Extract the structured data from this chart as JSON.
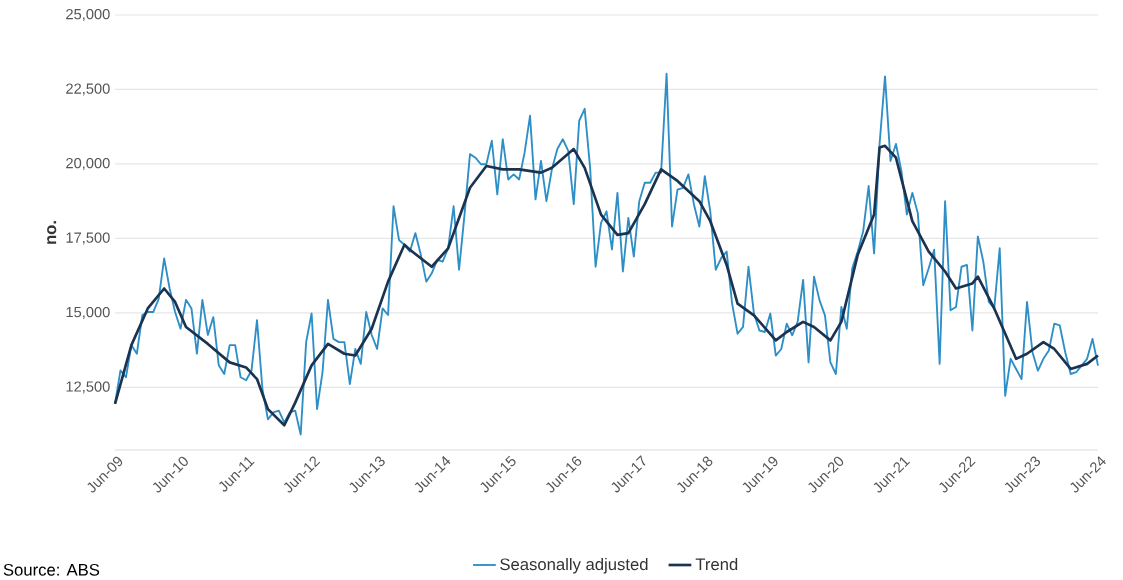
{
  "chart_data": {
    "type": "line",
    "ylabel": "no.",
    "x": [
      "2009-06",
      "2009-07",
      "2009-08",
      "2009-09",
      "2009-10",
      "2009-11",
      "2009-12",
      "2010-01",
      "2010-02",
      "2010-03",
      "2010-04",
      "2010-05",
      "2010-06",
      "2010-07",
      "2010-08",
      "2010-09",
      "2010-10",
      "2010-11",
      "2010-12",
      "2011-01",
      "2011-02",
      "2011-03",
      "2011-04",
      "2011-05",
      "2011-06",
      "2011-07",
      "2011-08",
      "2011-09",
      "2011-10",
      "2011-11",
      "2011-12",
      "2012-01",
      "2012-02",
      "2012-03",
      "2012-04",
      "2012-05",
      "2012-06",
      "2012-07",
      "2012-08",
      "2012-09",
      "2012-10",
      "2012-11",
      "2012-12",
      "2013-01",
      "2013-02",
      "2013-03",
      "2013-04",
      "2013-05",
      "2013-06",
      "2013-07",
      "2013-08",
      "2013-09",
      "2013-10",
      "2013-11",
      "2013-12",
      "2014-01",
      "2014-02",
      "2014-03",
      "2014-04",
      "2014-05",
      "2014-06",
      "2014-07",
      "2014-08",
      "2014-09",
      "2014-10",
      "2014-11",
      "2014-12",
      "2015-01",
      "2015-02",
      "2015-03",
      "2015-04",
      "2015-05",
      "2015-06",
      "2015-07",
      "2015-08",
      "2015-09",
      "2015-10",
      "2015-11",
      "2015-12",
      "2016-01",
      "2016-02",
      "2016-03",
      "2016-04",
      "2016-05",
      "2016-06",
      "2016-07",
      "2016-08",
      "2016-09",
      "2016-10",
      "2016-11",
      "2016-12",
      "2017-01",
      "2017-02",
      "2017-03",
      "2017-04",
      "2017-05",
      "2017-06",
      "2017-07",
      "2017-08",
      "2017-09",
      "2017-10",
      "2017-11",
      "2017-12",
      "2018-01",
      "2018-02",
      "2018-03",
      "2018-04",
      "2018-05",
      "2018-06",
      "2018-07",
      "2018-08",
      "2018-09",
      "2018-10",
      "2018-11",
      "2018-12",
      "2019-01",
      "2019-02",
      "2019-03",
      "2019-04",
      "2019-05",
      "2019-06",
      "2019-07",
      "2019-08",
      "2019-09",
      "2019-10",
      "2019-11",
      "2019-12",
      "2020-01",
      "2020-02",
      "2020-03",
      "2020-04",
      "2020-05",
      "2020-06",
      "2020-07",
      "2020-08",
      "2020-09",
      "2020-10",
      "2020-11",
      "2020-12",
      "2021-01",
      "2021-02",
      "2021-03",
      "2021-04",
      "2021-05",
      "2021-06",
      "2021-07",
      "2021-08",
      "2021-09",
      "2021-10",
      "2021-11",
      "2021-12",
      "2022-01",
      "2022-02",
      "2022-03",
      "2022-04",
      "2022-05",
      "2022-06",
      "2022-07",
      "2022-08",
      "2022-09",
      "2022-10",
      "2022-11",
      "2022-12",
      "2023-01",
      "2023-02",
      "2023-03",
      "2023-04",
      "2023-05",
      "2023-06",
      "2023-07",
      "2023-08",
      "2023-09",
      "2023-10",
      "2023-11",
      "2023-12",
      "2024-01",
      "2024-02",
      "2024-03",
      "2024-04",
      "2024-05",
      "2024-06"
    ],
    "series": [
      {
        "name": "Seasonally adjusted",
        "color": "#2e8fc7",
        "values": [
          11950,
          13070,
          12840,
          13920,
          13630,
          14930,
          15030,
          15030,
          15470,
          16830,
          15820,
          15030,
          14470,
          15440,
          15150,
          13630,
          15440,
          14260,
          14860,
          13240,
          12950,
          13920,
          13920,
          12840,
          12740,
          13070,
          14760,
          12440,
          11430,
          11660,
          11720,
          11320,
          11660,
          11720,
          10920,
          14020,
          14980,
          11770,
          13010,
          15440,
          14130,
          14020,
          14020,
          12610,
          13790,
          13290,
          15030,
          14260,
          13790,
          15150,
          14930,
          18580,
          17450,
          17290,
          17060,
          17680,
          16950,
          16050,
          16330,
          16780,
          16720,
          17170,
          18580,
          16450,
          18300,
          20330,
          20210,
          19990,
          19990,
          20780,
          18980,
          20830,
          19480,
          19650,
          19480,
          20380,
          21620,
          18810,
          20100,
          18750,
          19820,
          20500,
          20830,
          20440,
          18650,
          21450,
          21850,
          19870,
          16550,
          18020,
          18410,
          17130,
          19030,
          16390,
          18190,
          16890,
          18750,
          19370,
          19370,
          19710,
          19710,
          23030,
          17900,
          19140,
          19200,
          19650,
          18650,
          17900,
          19590,
          18410,
          16450,
          16840,
          17060,
          15310,
          14300,
          14530,
          16550,
          14980,
          14410,
          14360,
          14980,
          13570,
          13790,
          14640,
          14250,
          14700,
          16110,
          13340,
          16220,
          15430,
          14920,
          13340,
          12950,
          15200,
          14470,
          16500,
          17060,
          17740,
          19260,
          17000,
          20670,
          22940,
          20100,
          20670,
          19770,
          18300,
          19030,
          18350,
          15930,
          16500,
          17120,
          13290,
          18750,
          15090,
          15200,
          16550,
          16610,
          14410,
          17570,
          16720,
          15370,
          15150,
          17170,
          12220,
          13460,
          13120,
          12780,
          15370,
          13680,
          13060,
          13460,
          13740,
          14640,
          14580,
          13680,
          12950,
          13010,
          13230,
          13460,
          14130,
          13230
        ]
      },
      {
        "name": "Trend",
        "color": "#1b3350",
        "x": [
          "2009-06",
          "2009-09",
          "2009-12",
          "2010-03",
          "2010-05",
          "2010-07",
          "2010-11",
          "2011-03",
          "2011-06",
          "2011-08",
          "2011-10",
          "2012-01",
          "2012-03",
          "2012-06",
          "2012-09",
          "2012-12",
          "2013-02",
          "2013-05",
          "2013-08",
          "2013-11",
          "2013-12",
          "2014-04",
          "2014-07",
          "2014-11",
          "2015-02",
          "2015-05",
          "2015-08",
          "2015-12",
          "2016-02",
          "2016-06",
          "2016-08",
          "2016-11",
          "2017-02",
          "2017-04",
          "2017-07",
          "2017-10",
          "2018-01",
          "2018-05",
          "2018-07",
          "2018-10",
          "2018-12",
          "2019-03",
          "2019-07",
          "2019-09",
          "2019-12",
          "2020-02",
          "2020-05",
          "2020-07",
          "2020-10",
          "2021-01",
          "2021-02",
          "2021-03",
          "2021-05",
          "2021-08",
          "2021-11",
          "2022-02",
          "2022-04",
          "2022-07",
          "2022-08",
          "2022-11",
          "2023-03",
          "2023-05",
          "2023-08",
          "2023-10",
          "2024-01",
          "2024-04",
          "2024-06"
        ],
        "values": [
          11950,
          13920,
          15150,
          15820,
          15370,
          14530,
          13960,
          13340,
          13170,
          12780,
          11770,
          11230,
          11990,
          13240,
          13960,
          13630,
          13570,
          14470,
          16050,
          17290,
          17120,
          16550,
          17170,
          19200,
          19930,
          19820,
          19820,
          19710,
          19870,
          20500,
          19870,
          18300,
          17620,
          17680,
          18650,
          19820,
          19430,
          18750,
          18080,
          16610,
          15310,
          14920,
          14080,
          14360,
          14700,
          14530,
          14080,
          14700,
          16950,
          18300,
          20550,
          20610,
          20210,
          18080,
          17060,
          16390,
          15820,
          15990,
          16220,
          15150,
          13460,
          13630,
          14020,
          13790,
          13120,
          13290,
          13570
        ]
      }
    ],
    "xlim": [
      "2009-06",
      "2024-06"
    ],
    "xticks": [
      {
        "value": "2009-06",
        "label": "Jun-09"
      },
      {
        "value": "2010-06",
        "label": "Jun-10"
      },
      {
        "value": "2011-06",
        "label": "Jun-11"
      },
      {
        "value": "2012-06",
        "label": "Jun-12"
      },
      {
        "value": "2013-06",
        "label": "Jun-13"
      },
      {
        "value": "2014-06",
        "label": "Jun-14"
      },
      {
        "value": "2015-06",
        "label": "Jun-15"
      },
      {
        "value": "2016-06",
        "label": "Jun-16"
      },
      {
        "value": "2017-06",
        "label": "Jun-17"
      },
      {
        "value": "2018-06",
        "label": "Jun-18"
      },
      {
        "value": "2019-06",
        "label": "Jun-19"
      },
      {
        "value": "2020-06",
        "label": "Jun-20"
      },
      {
        "value": "2021-06",
        "label": "Jun-21"
      },
      {
        "value": "2022-06",
        "label": "Jun-22"
      },
      {
        "value": "2023-06",
        "label": "Jun-23"
      },
      {
        "value": "2024-06",
        "label": "Jun-24"
      }
    ],
    "ylim": [
      10400,
      25000
    ],
    "yticks": [
      {
        "value": 12500,
        "label": "12,500"
      },
      {
        "value": 15000,
        "label": "15,000"
      },
      {
        "value": 17500,
        "label": "17,500"
      },
      {
        "value": 20000,
        "label": "20,000"
      },
      {
        "value": 22500,
        "label": "22,500"
      },
      {
        "value": 25000,
        "label": "25,000"
      }
    ],
    "grid": "y",
    "legend": "bottom",
    "marker": "none",
    "line_style": "solid",
    "annotations": [
      "Source: ABS"
    ]
  }
}
